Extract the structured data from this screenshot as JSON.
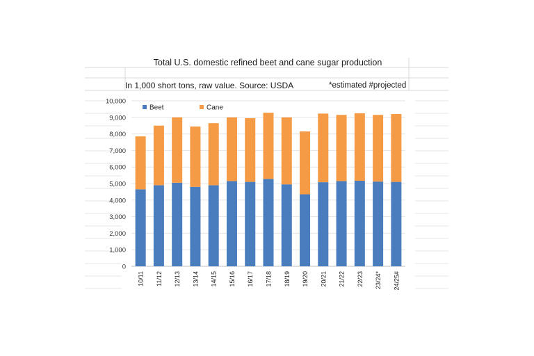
{
  "sheet": {
    "title": "Total U.S. domestic refined beet and cane sugar production",
    "subtitle": "In 1,000 short tons, raw value. Source: USDA",
    "note": "*estimated #projected"
  },
  "colors": {
    "beet": "#4a7dbe",
    "cane": "#f59a45",
    "gridline": "#d9d9d9"
  },
  "chart_data": {
    "type": "bar",
    "stacked": true,
    "title": "Total U.S. domestic refined beet and cane sugar production",
    "subtitle": "In 1,000 short tons, raw value. Source: USDA",
    "categories": [
      "10/11",
      "11/12",
      "12/13",
      "13/14",
      "14/15",
      "15/16",
      "16/17",
      "17/18",
      "18/19",
      "19/20",
      "20/21",
      "21/22",
      "22/23",
      "23/24*",
      "24/25#"
    ],
    "series": [
      {
        "name": "Beet",
        "values": [
          4650,
          4900,
          5050,
          4800,
          4900,
          5150,
          5100,
          5280,
          4950,
          4350,
          5080,
          5150,
          5170,
          5120,
          5100
        ]
      },
      {
        "name": "Cane",
        "values": [
          3200,
          3600,
          3950,
          3650,
          3750,
          3850,
          3850,
          4000,
          4050,
          3800,
          4150,
          4000,
          4080,
          4030,
          4100
        ]
      }
    ],
    "ylim": [
      0,
      10000
    ],
    "yticks": [
      "0",
      "1,000",
      "2,000",
      "3,000",
      "4,000",
      "5,000",
      "6,000",
      "7,000",
      "8,000",
      "9,000",
      "10,000"
    ],
    "legend": "top-left",
    "grid": true
  }
}
